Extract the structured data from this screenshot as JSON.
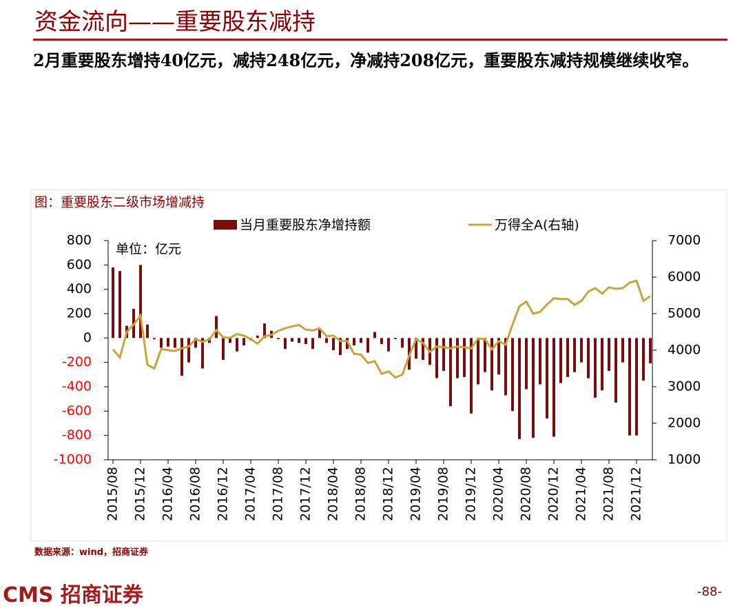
{
  "header": {
    "title": "资金流向——重要股东减持",
    "summary": "2月重要股东增持40亿元，减持248亿元，净减持208亿元，重要股东减持规模继续收窄。"
  },
  "footer": {
    "source": "数据来源：wind，招商证券",
    "logo": "CMS 招商证券",
    "page": "-88-"
  },
  "chart_data": {
    "type": "bar_line",
    "title": "图：重要股东二级市场增减持",
    "annotation": "单位：亿元",
    "categories": [
      "2015/08",
      null,
      null,
      null,
      "2015/12",
      null,
      null,
      null,
      "2016/04",
      null,
      null,
      null,
      "2016/08",
      null,
      null,
      null,
      "2016/12",
      null,
      null,
      null,
      "2017/04",
      null,
      null,
      null,
      "2017/08",
      null,
      null,
      null,
      "2017/12",
      null,
      null,
      null,
      "2018/04",
      null,
      null,
      null,
      "2018/08",
      null,
      null,
      null,
      "2018/12",
      null,
      null,
      null,
      "2019/04",
      null,
      null,
      null,
      "2019/08",
      null,
      null,
      null,
      "2019/12",
      null,
      null,
      null,
      "2020/04",
      null,
      null,
      null,
      "2020/08",
      null,
      null,
      null,
      "2020/12",
      null,
      null,
      null,
      "2021/04",
      null,
      null,
      null,
      "2021/08",
      null,
      null,
      null,
      "2021/12",
      null,
      null
    ],
    "series": [
      {
        "name": "当月重要股东净增持额",
        "type": "bar",
        "color": "#7b0c0c",
        "axis": "y",
        "values": [
          580,
          550,
          100,
          240,
          600,
          110,
          -10,
          -80,
          -70,
          -80,
          -310,
          -200,
          -80,
          -250,
          -40,
          180,
          -180,
          -40,
          -110,
          -60,
          -20,
          20,
          120,
          60,
          -10,
          -90,
          -30,
          -40,
          -50,
          -90,
          70,
          -40,
          -100,
          -140,
          -90,
          -60,
          -40,
          -120,
          50,
          -50,
          -110,
          -10,
          -80,
          -260,
          -170,
          -180,
          -220,
          -330,
          -270,
          -560,
          -330,
          -320,
          -620,
          -380,
          -280,
          -430,
          -300,
          -470,
          -600,
          -830,
          -420,
          -820,
          -380,
          -660,
          -810,
          -370,
          -320,
          -280,
          -200,
          -330,
          -490,
          -430,
          -270,
          -530,
          -200,
          -800,
          -800,
          -350,
          -208
        ]
      },
      {
        "name": "万得全A(右轴)",
        "type": "line",
        "color": "#c9a23a",
        "axis": "y2",
        "values": [
          4020,
          3800,
          4500,
          4700,
          4950,
          3600,
          3500,
          4030,
          4000,
          3980,
          4050,
          4100,
          4300,
          4230,
          4300,
          4550,
          4350,
          4340,
          4440,
          4400,
          4300,
          4180,
          4380,
          4420,
          4530,
          4600,
          4650,
          4690,
          4560,
          4540,
          4600,
          4380,
          4400,
          4250,
          4250,
          3900,
          3880,
          3650,
          3700,
          3350,
          3420,
          3250,
          3330,
          3850,
          4300,
          4200,
          3950,
          4100,
          4080,
          4050,
          4100,
          4080,
          4050,
          4320,
          4300,
          4020,
          4250,
          4150,
          4700,
          5200,
          5330,
          5000,
          5050,
          5250,
          5420,
          5400,
          5400,
          5240,
          5350,
          5600,
          5700,
          5550,
          5720,
          5680,
          5700,
          5850,
          5900,
          5350,
          5480
        ]
      }
    ],
    "ylim": [
      -1000,
      800
    ],
    "yticks": [
      -1000,
      -800,
      -600,
      -400,
      -200,
      0,
      200,
      400,
      600,
      800
    ],
    "y2lim": [
      1000,
      7000
    ],
    "y2ticks": [
      1000,
      2000,
      3000,
      4000,
      5000,
      6000,
      7000
    ],
    "legend": "top",
    "grid": false
  }
}
